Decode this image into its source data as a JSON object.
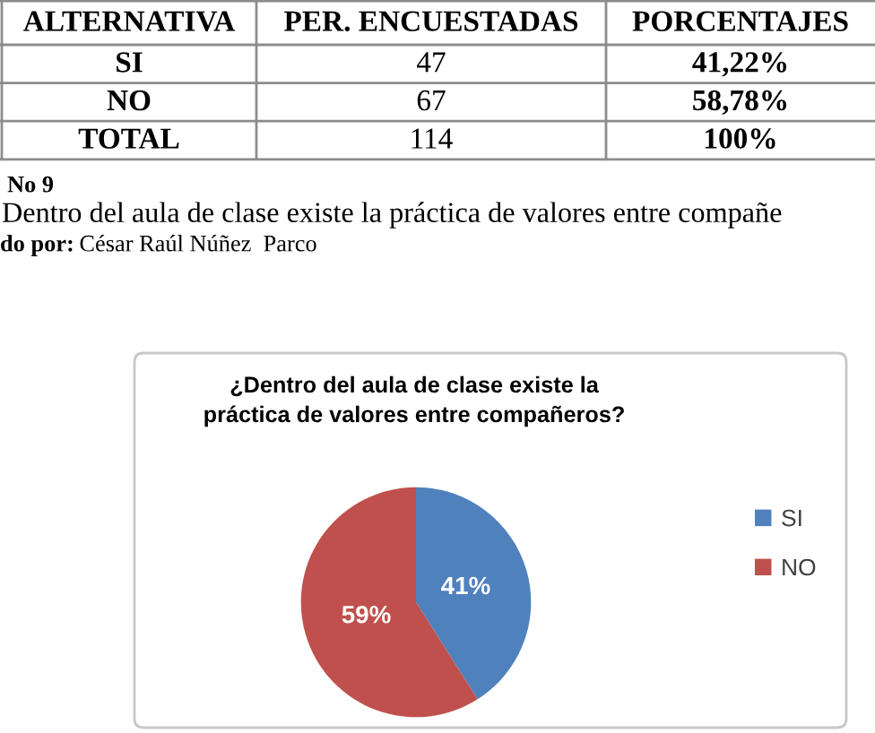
{
  "chart_data": [
    {
      "type": "other",
      "data_labels": true,
      "ylabel": "ALTERNATIVA",
      "categories": [
        "SI",
        "NO",
        "TOTAL"
      ],
      "series": [
        {
          "name": "PER. ENCUESTADAS",
          "values": [
            47,
            67,
            114
          ]
        },
        {
          "name": "PORCENTAJES",
          "values": [
            41.22,
            58.78,
            100
          ],
          "value_labels": [
            "41,22%",
            "58,78%",
            "100%"
          ]
        }
      ]
    },
    {
      "type": "pie",
      "title": "¿Dentro del aula de clase existe la\npráctica de valores entre compañeros?",
      "categories": [
        "SI",
        "NO"
      ],
      "values": [
        41,
        59
      ],
      "colors": [
        "#4f81bd",
        "#c0504d"
      ],
      "value_labels": [
        "41%",
        "59%"
      ],
      "legend": "right",
      "annotations": [
        "No 9",
        "Dentro del aula de clase existe la práctica de valores entre compañe",
        "do por:",
        "César Raúl Núñez  Parco"
      ]
    }
  ]
}
